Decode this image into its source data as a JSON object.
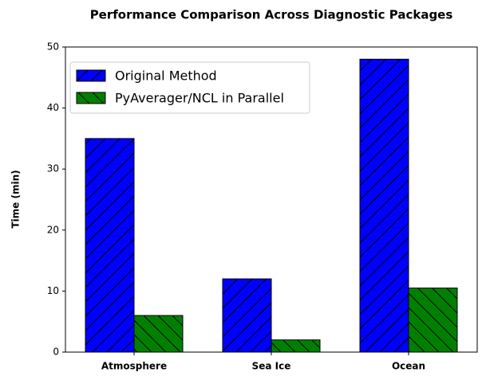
{
  "chart_data": {
    "type": "bar",
    "title": "Performance Comparison Across Diagnostic Packages",
    "y_label": "Time (min)",
    "categories": [
      "Atmosphere",
      "Sea Ice",
      "Ocean"
    ],
    "series": [
      {
        "name": "Original Method",
        "color": "#0000ff",
        "hatch": "/",
        "values": [
          35,
          12,
          48
        ]
      },
      {
        "name": "PyAverager/NCL in Parallel",
        "color": "#008000",
        "hatch": "\\",
        "values": [
          6,
          2,
          10.5
        ]
      }
    ],
    "ylim": [
      0,
      50
    ],
    "yticks": [
      0,
      10,
      20,
      30,
      40,
      50
    ],
    "legend": "upper left",
    "grid": false
  }
}
